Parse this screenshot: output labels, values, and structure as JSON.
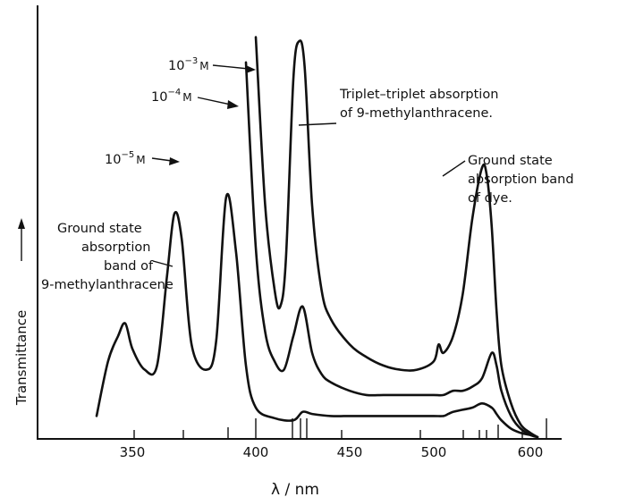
{
  "chart_data": {
    "type": "line",
    "title": "",
    "xlabel": "λ / nm",
    "ylabel": "Transmittance",
    "x_ticks": [
      "350",
      "400",
      "450",
      "500",
      "600"
    ],
    "grid": false,
    "legend": "none",
    "series": [
      {
        "name": "10⁻⁵ M",
        "x": [
          325,
          333,
          340,
          345,
          350,
          355,
          360,
          364,
          367,
          370,
          374,
          380,
          384,
          388,
          392,
          396,
          400,
          410,
          420,
          425,
          430,
          440,
          450,
          460,
          470,
          480,
          490,
          500,
          510,
          515,
          520,
          530,
          540,
          550,
          560,
          565,
          570,
          580,
          590,
          600,
          605
        ],
        "y": [
          0.05,
          0.18,
          0.24,
          0.27,
          0.21,
          0.16,
          0.17,
          0.38,
          0.53,
          0.47,
          0.22,
          0.16,
          0.23,
          0.57,
          0.44,
          0.17,
          0.07,
          0.045,
          0.04,
          0.06,
          0.055,
          0.05,
          0.05,
          0.05,
          0.05,
          0.05,
          0.05,
          0.05,
          0.05,
          0.055,
          0.06,
          0.065,
          0.07,
          0.08,
          0.07,
          0.055,
          0.04,
          0.02,
          0.01,
          0.005,
          0.0
        ]
      },
      {
        "name": "10⁻⁴ M",
        "x": [
          396,
          400,
          405,
          410,
          415,
          420,
          425,
          430,
          435,
          440,
          450,
          460,
          470,
          480,
          490,
          500,
          510,
          520,
          530,
          540,
          550,
          560,
          565,
          570,
          580,
          590,
          600,
          605
        ],
        "y": [
          0.89,
          0.45,
          0.25,
          0.18,
          0.16,
          0.24,
          0.31,
          0.2,
          0.15,
          0.13,
          0.11,
          0.1,
          0.1,
          0.1,
          0.1,
          0.1,
          0.1,
          0.11,
          0.11,
          0.12,
          0.14,
          0.2,
          0.17,
          0.11,
          0.05,
          0.02,
          0.005,
          0.0
        ]
      },
      {
        "name": "10⁻³ M",
        "x": [
          400,
          405,
          410,
          413,
          416,
          420,
          423,
          426,
          430,
          435,
          440,
          450,
          460,
          470,
          480,
          490,
          500,
          505,
          510,
          520,
          530,
          540,
          550,
          555,
          560,
          565,
          570,
          580,
          590,
          600,
          605
        ],
        "y": [
          0.95,
          0.55,
          0.35,
          0.31,
          0.42,
          0.85,
          0.94,
          0.88,
          0.55,
          0.35,
          0.28,
          0.22,
          0.19,
          0.17,
          0.16,
          0.16,
          0.18,
          0.22,
          0.2,
          0.24,
          0.34,
          0.52,
          0.64,
          0.62,
          0.5,
          0.3,
          0.17,
          0.08,
          0.03,
          0.01,
          0.0
        ]
      }
    ],
    "annotations": [
      {
        "base": "10",
        "exp": "−3",
        "unit": "M"
      },
      {
        "base": "10",
        "exp": "−4",
        "unit": "M"
      },
      {
        "base": "10",
        "exp": "−5",
        "unit": "M"
      },
      {
        "lines": [
          "Triplet–triplet absorption",
          "of 9-methylanthracene."
        ]
      },
      {
        "lines": [
          "Ground state",
          "absorption band",
          "of dye."
        ]
      },
      {
        "lines": [
          "Ground state",
          "absorption",
          "band of",
          "9-methylanthracene"
        ]
      }
    ]
  }
}
